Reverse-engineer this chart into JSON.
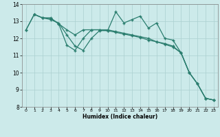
{
  "xA": [
    0,
    1,
    2,
    3,
    4,
    5,
    6,
    7,
    8,
    9,
    10,
    11,
    12,
    13,
    14,
    15,
    16,
    17,
    18,
    19,
    20,
    21,
    22,
    23
  ],
  "yA": [
    12.5,
    13.4,
    13.2,
    13.1,
    12.9,
    12.2,
    11.55,
    11.3,
    12.0,
    12.45,
    12.45,
    13.55,
    12.9,
    13.1,
    13.3,
    12.6,
    12.9,
    12.0,
    11.9,
    11.15,
    10.0,
    9.35,
    8.5,
    8.4
  ],
  "xB": [
    0,
    1,
    2,
    3,
    4,
    5,
    6,
    7,
    8,
    9,
    10,
    11,
    12,
    13,
    14,
    15,
    16,
    17,
    18,
    19,
    20,
    21,
    22,
    23
  ],
  "yB": [
    12.5,
    13.4,
    13.2,
    13.15,
    12.85,
    12.5,
    12.2,
    12.5,
    12.5,
    12.5,
    12.45,
    12.35,
    12.25,
    12.15,
    12.05,
    11.9,
    11.8,
    11.7,
    11.55,
    11.15,
    10.0,
    9.35,
    8.5,
    8.4
  ],
  "xC": [
    1,
    2,
    3,
    4,
    5,
    6,
    7,
    8,
    9,
    10,
    11,
    12,
    13,
    14,
    15,
    16,
    17,
    18,
    19,
    20,
    21,
    22,
    23
  ],
  "yC": [
    13.4,
    13.2,
    13.2,
    12.85,
    11.6,
    11.3,
    12.0,
    12.5,
    12.5,
    12.5,
    12.4,
    12.3,
    12.2,
    12.1,
    12.0,
    11.8,
    11.65,
    11.5,
    11.15,
    10.0,
    9.35,
    8.5,
    8.4
  ],
  "color": "#2a7d6e",
  "bg_color": "#cceaea",
  "grid_color": "#aad0d0",
  "ylim": [
    8,
    14
  ],
  "xlim": [
    -0.5,
    23.5
  ],
  "xlabel": "Humidex (Indice chaleur)",
  "xticks": [
    0,
    1,
    2,
    3,
    4,
    5,
    6,
    7,
    8,
    9,
    10,
    11,
    12,
    13,
    14,
    15,
    16,
    17,
    18,
    19,
    20,
    21,
    22,
    23
  ],
  "yticks": [
    8,
    9,
    10,
    11,
    12,
    13,
    14
  ]
}
